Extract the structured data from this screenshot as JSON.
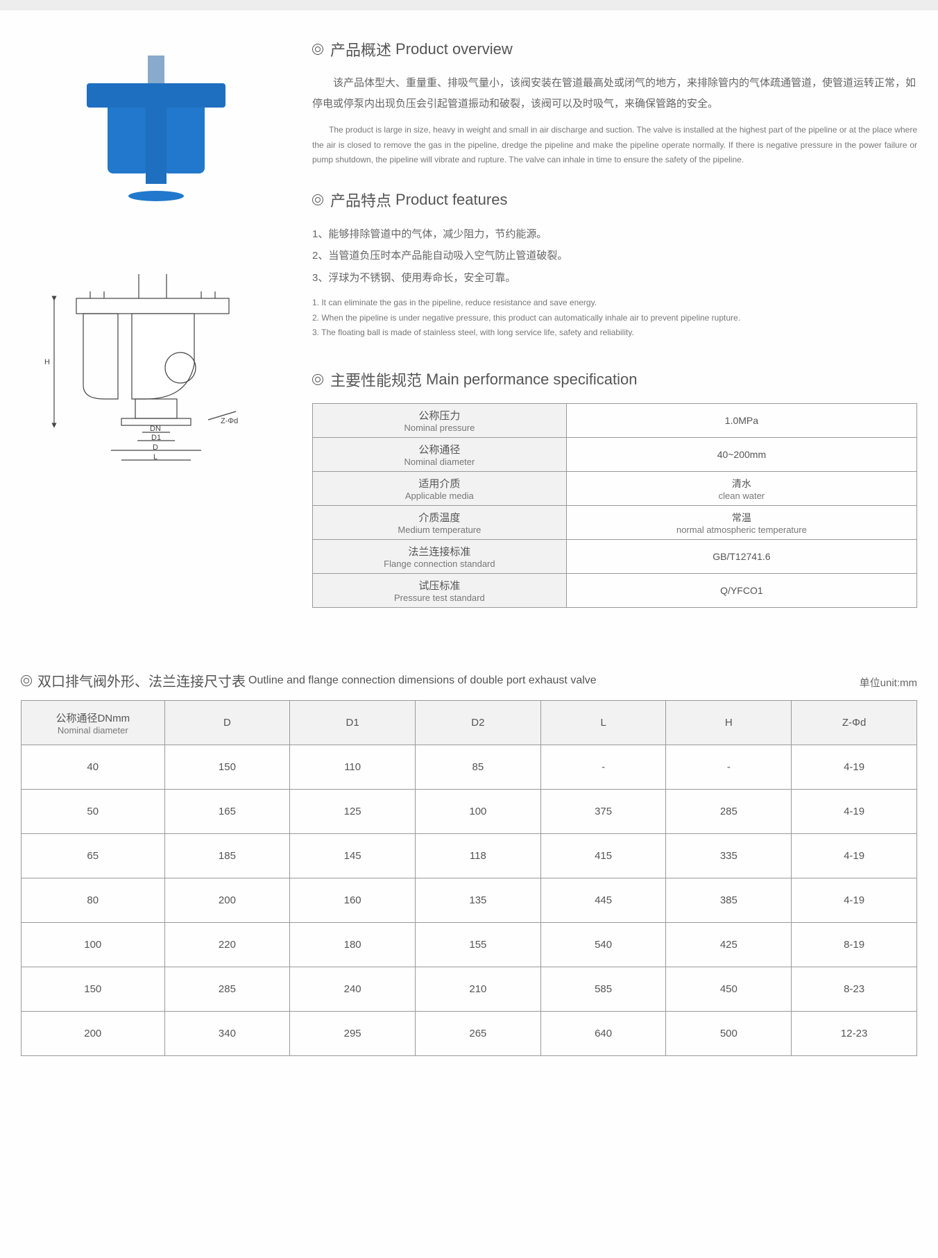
{
  "overview": {
    "title_cn": "产品概述",
    "title_en": "Product overview",
    "para_cn": "该产品体型大、重量重、排吸气量小，该阀安装在管道最高处或闭气的地方，来排除管内的气体疏通管道，使管道运转正常，如停电或停泵内出现负压会引起管道振动和破裂，该阀可以及时吸气，来确保管路的安全。",
    "para_en": "The product is large in size, heavy in weight and small in air discharge and suction. The valve is installed at the highest part of the pipeline or at the place where the air is closed to remove the gas in the pipeline, dredge the pipeline and make the pipeline operate normally. If there is negative pressure in the power failure or pump shutdown, the pipeline will vibrate and rupture. The valve can inhale in time to ensure the safety of the pipeline."
  },
  "features": {
    "title_cn": "产品特点",
    "title_en": "Product features",
    "items_cn": [
      "1、能够排除管道中的气体，减少阻力，节约能源。",
      "2、当管道负压时本产品能自动吸入空气防止管道破裂。",
      "3、浮球为不锈钢、使用寿命长，安全可靠。"
    ],
    "items_en": [
      "1. It can eliminate the gas in the pipeline, reduce resistance and save energy.",
      "2. When the pipeline is under negative pressure, this product can automatically inhale air to prevent pipeline rupture.",
      "3. The floating ball is made of stainless steel, with long service life, safety and reliability."
    ]
  },
  "spec": {
    "title_cn": "主要性能规范",
    "title_en": "Main performance specification",
    "rows": [
      {
        "label_cn": "公称压力",
        "label_en": "Nominal pressure",
        "value": "1.0MPa"
      },
      {
        "label_cn": "公称通径",
        "label_en": "Nominal diameter",
        "value": "40~200mm"
      },
      {
        "label_cn": "适用介质",
        "label_en": "Applicable media",
        "value_cn": "清水",
        "value_en": "clean water"
      },
      {
        "label_cn": "介质温度",
        "label_en": "Medium temperature",
        "value_cn": "常温",
        "value_en": "normal atmospheric temperature"
      },
      {
        "label_cn": "法兰连接标准",
        "label_en": "Flange connection standard",
        "value": "GB/T12741.6"
      },
      {
        "label_cn": "试压标准",
        "label_en": "Pressure test standard",
        "value": "Q/YFCO1"
      }
    ]
  },
  "dimensions": {
    "title_cn": "双口排气阀外形、法兰连接尺寸表",
    "title_en": "Outline and flange connection dimensions of double port exhaust valve",
    "unit": "单位unit:mm",
    "columns": [
      {
        "cn": "公称通径DNmm",
        "en": "Nominal diameter"
      },
      {
        "label": "D"
      },
      {
        "label": "D1"
      },
      {
        "label": "D2"
      },
      {
        "label": "L"
      },
      {
        "label": "H"
      },
      {
        "label": "Z-Φd"
      }
    ],
    "rows": [
      [
        "40",
        "150",
        "110",
        "85",
        "-",
        "-",
        "4-19"
      ],
      [
        "50",
        "165",
        "125",
        "100",
        "375",
        "285",
        "4-19"
      ],
      [
        "65",
        "185",
        "145",
        "118",
        "415",
        "335",
        "4-19"
      ],
      [
        "80",
        "200",
        "160",
        "135",
        "445",
        "385",
        "4-19"
      ],
      [
        "100",
        "220",
        "180",
        "155",
        "540",
        "425",
        "8-19"
      ],
      [
        "150",
        "285",
        "240",
        "210",
        "585",
        "450",
        "8-23"
      ],
      [
        "200",
        "340",
        "295",
        "265",
        "640",
        "500",
        "12-23"
      ]
    ]
  },
  "drawing": {
    "label_H": "H",
    "label_DN": "DN",
    "label_D1": "D1",
    "label_D": "D",
    "label_L": "L",
    "label_Z": "Z-Φd"
  },
  "colors": {
    "valve_blue": "#2178cc",
    "valve_dark": "#1e6fc0",
    "border": "#999999",
    "header_bg": "#f2f2f2",
    "text": "#555555",
    "text_light": "#777777"
  }
}
